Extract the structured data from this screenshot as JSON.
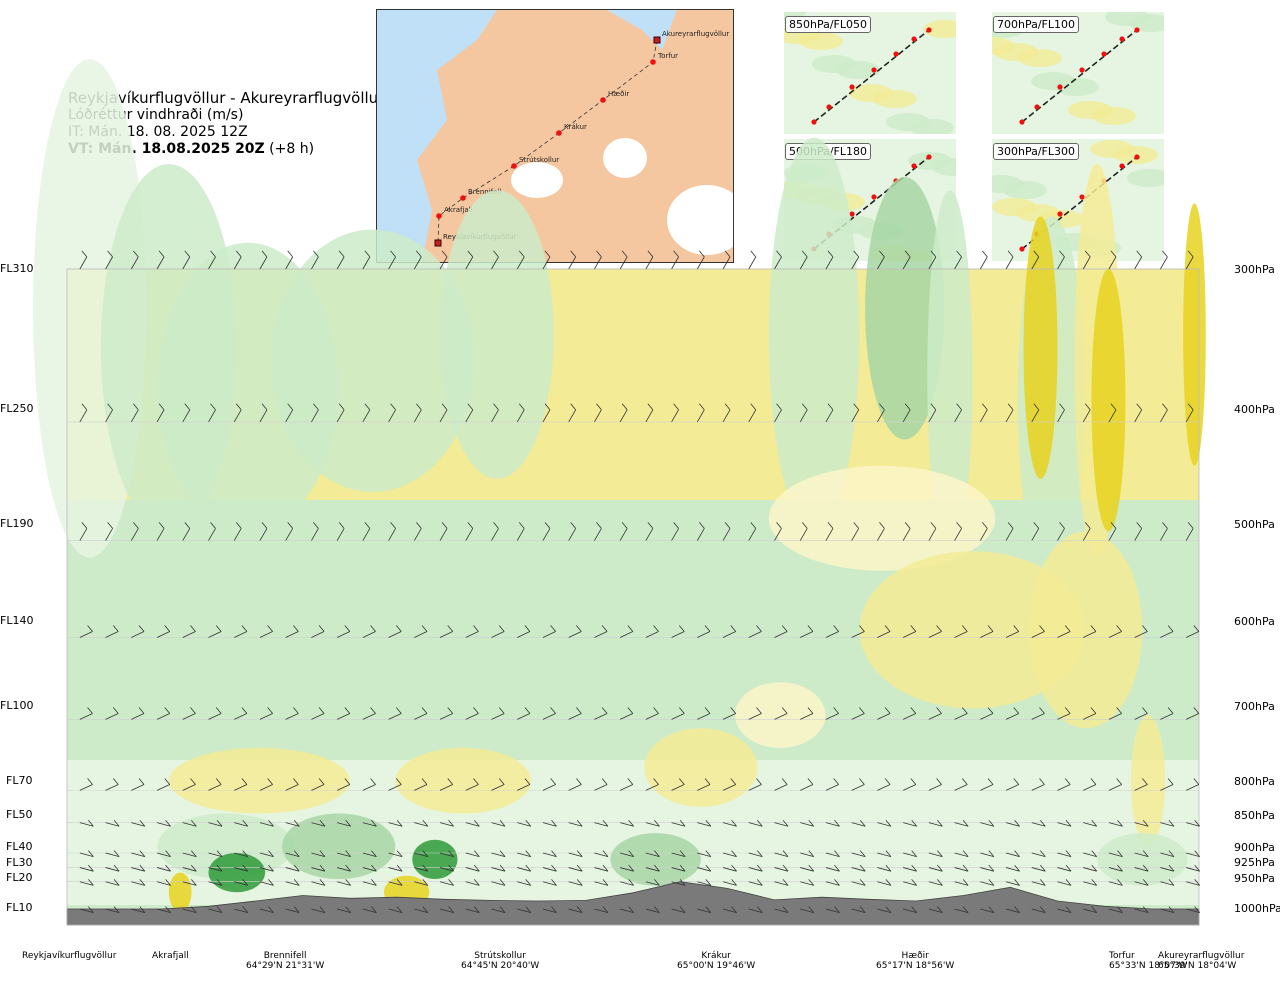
{
  "title": {
    "route": "Reykjavíkurflugvöllur - Akureyrarflugvöllur",
    "variable": "Lóðréttur vindhraði (m/s)",
    "init_time": "IT: Mán. 18. 08. 2025 12Z",
    "valid_prefix": "VT: Mán. 18.08.2025 20Z",
    "valid_suffix": "(+8 h)"
  },
  "map": {
    "stations": [
      {
        "name": "Akureyrarflugvöllur",
        "kind": "airport"
      },
      {
        "name": "Torfur",
        "kind": "point"
      },
      {
        "name": "Hæðir",
        "kind": "point"
      },
      {
        "name": "Krákur",
        "kind": "point"
      },
      {
        "name": "Strútskollur",
        "kind": "point"
      },
      {
        "name": "Brennifell",
        "kind": "point"
      },
      {
        "name": "Akrafjall",
        "kind": "point"
      },
      {
        "name": "Reykjavíkurflugvöllur",
        "kind": "airport"
      }
    ]
  },
  "mini_maps": [
    {
      "label": "850hPa/FL050"
    },
    {
      "label": "700hPa/FL100"
    },
    {
      "label": "500hPa/FL180"
    },
    {
      "label": "300hPa/FL300"
    }
  ],
  "chart_data": {
    "type": "heatmap",
    "description_axis_left": "flight level",
    "y_levels_fl": [
      "FL310",
      "FL250",
      "FL190",
      "FL140",
      "FL100",
      "FL70",
      "FL50",
      "FL40",
      "FL30",
      "FL20",
      "FL10"
    ],
    "y_levels_hpa": [
      "300hPa",
      "400hPa",
      "500hPa",
      "600hPa",
      "700hPa",
      "800hPa",
      "850hPa",
      "900hPa",
      "925hPa",
      "950hPa",
      "1000hPa"
    ],
    "pressure_values": [
      300,
      400,
      500,
      600,
      700,
      800,
      850,
      900,
      925,
      950,
      1000
    ],
    "x_locations": [
      {
        "name": "Reykjavíkurflugvöllur",
        "coord": ""
      },
      {
        "name": "Akrafjall",
        "coord": ""
      },
      {
        "name": "Brennifell",
        "coord": "64°29'N 21°31'W"
      },
      {
        "name": "Strútskollur",
        "coord": "64°45'N 20°40'W"
      },
      {
        "name": "Krákur",
        "coord": "65°00'N 19°46'W"
      },
      {
        "name": "Hæðir",
        "coord": "65°17'N 18°56'W"
      },
      {
        "name": "Torfur",
        "coord": "65°33'N 18°07'W"
      },
      {
        "name": "Akureyrarflugvöllur",
        "coord": "65°39'N 18°04'W"
      }
    ],
    "x_fraction": [
      0,
      0.085,
      0.19,
      0.38,
      0.56,
      0.74,
      0.93,
      1.0
    ],
    "terrain_hpa_profile": [
      1000,
      1000,
      1000,
      995,
      985,
      975,
      980,
      978,
      982,
      984,
      985,
      984,
      970,
      950,
      962,
      983,
      978,
      982,
      985,
      975,
      960,
      985,
      995,
      1000,
      1000
    ],
    "colors": {
      "strong_down": "#e6d21f",
      "down": "#f3eb95",
      "weak_down": "#fbf6c9",
      "neutral": "#ffffff",
      "weak_up": "#e6f5e1",
      "up": "#cdebc9",
      "strong_up": "#a7d6a5",
      "very_strong_up": "#2e9a3a",
      "terrain": "#7a7a7a",
      "sea": "#bfe0f7",
      "land": "#f5c7a0"
    },
    "grid": true,
    "legend": "none"
  }
}
